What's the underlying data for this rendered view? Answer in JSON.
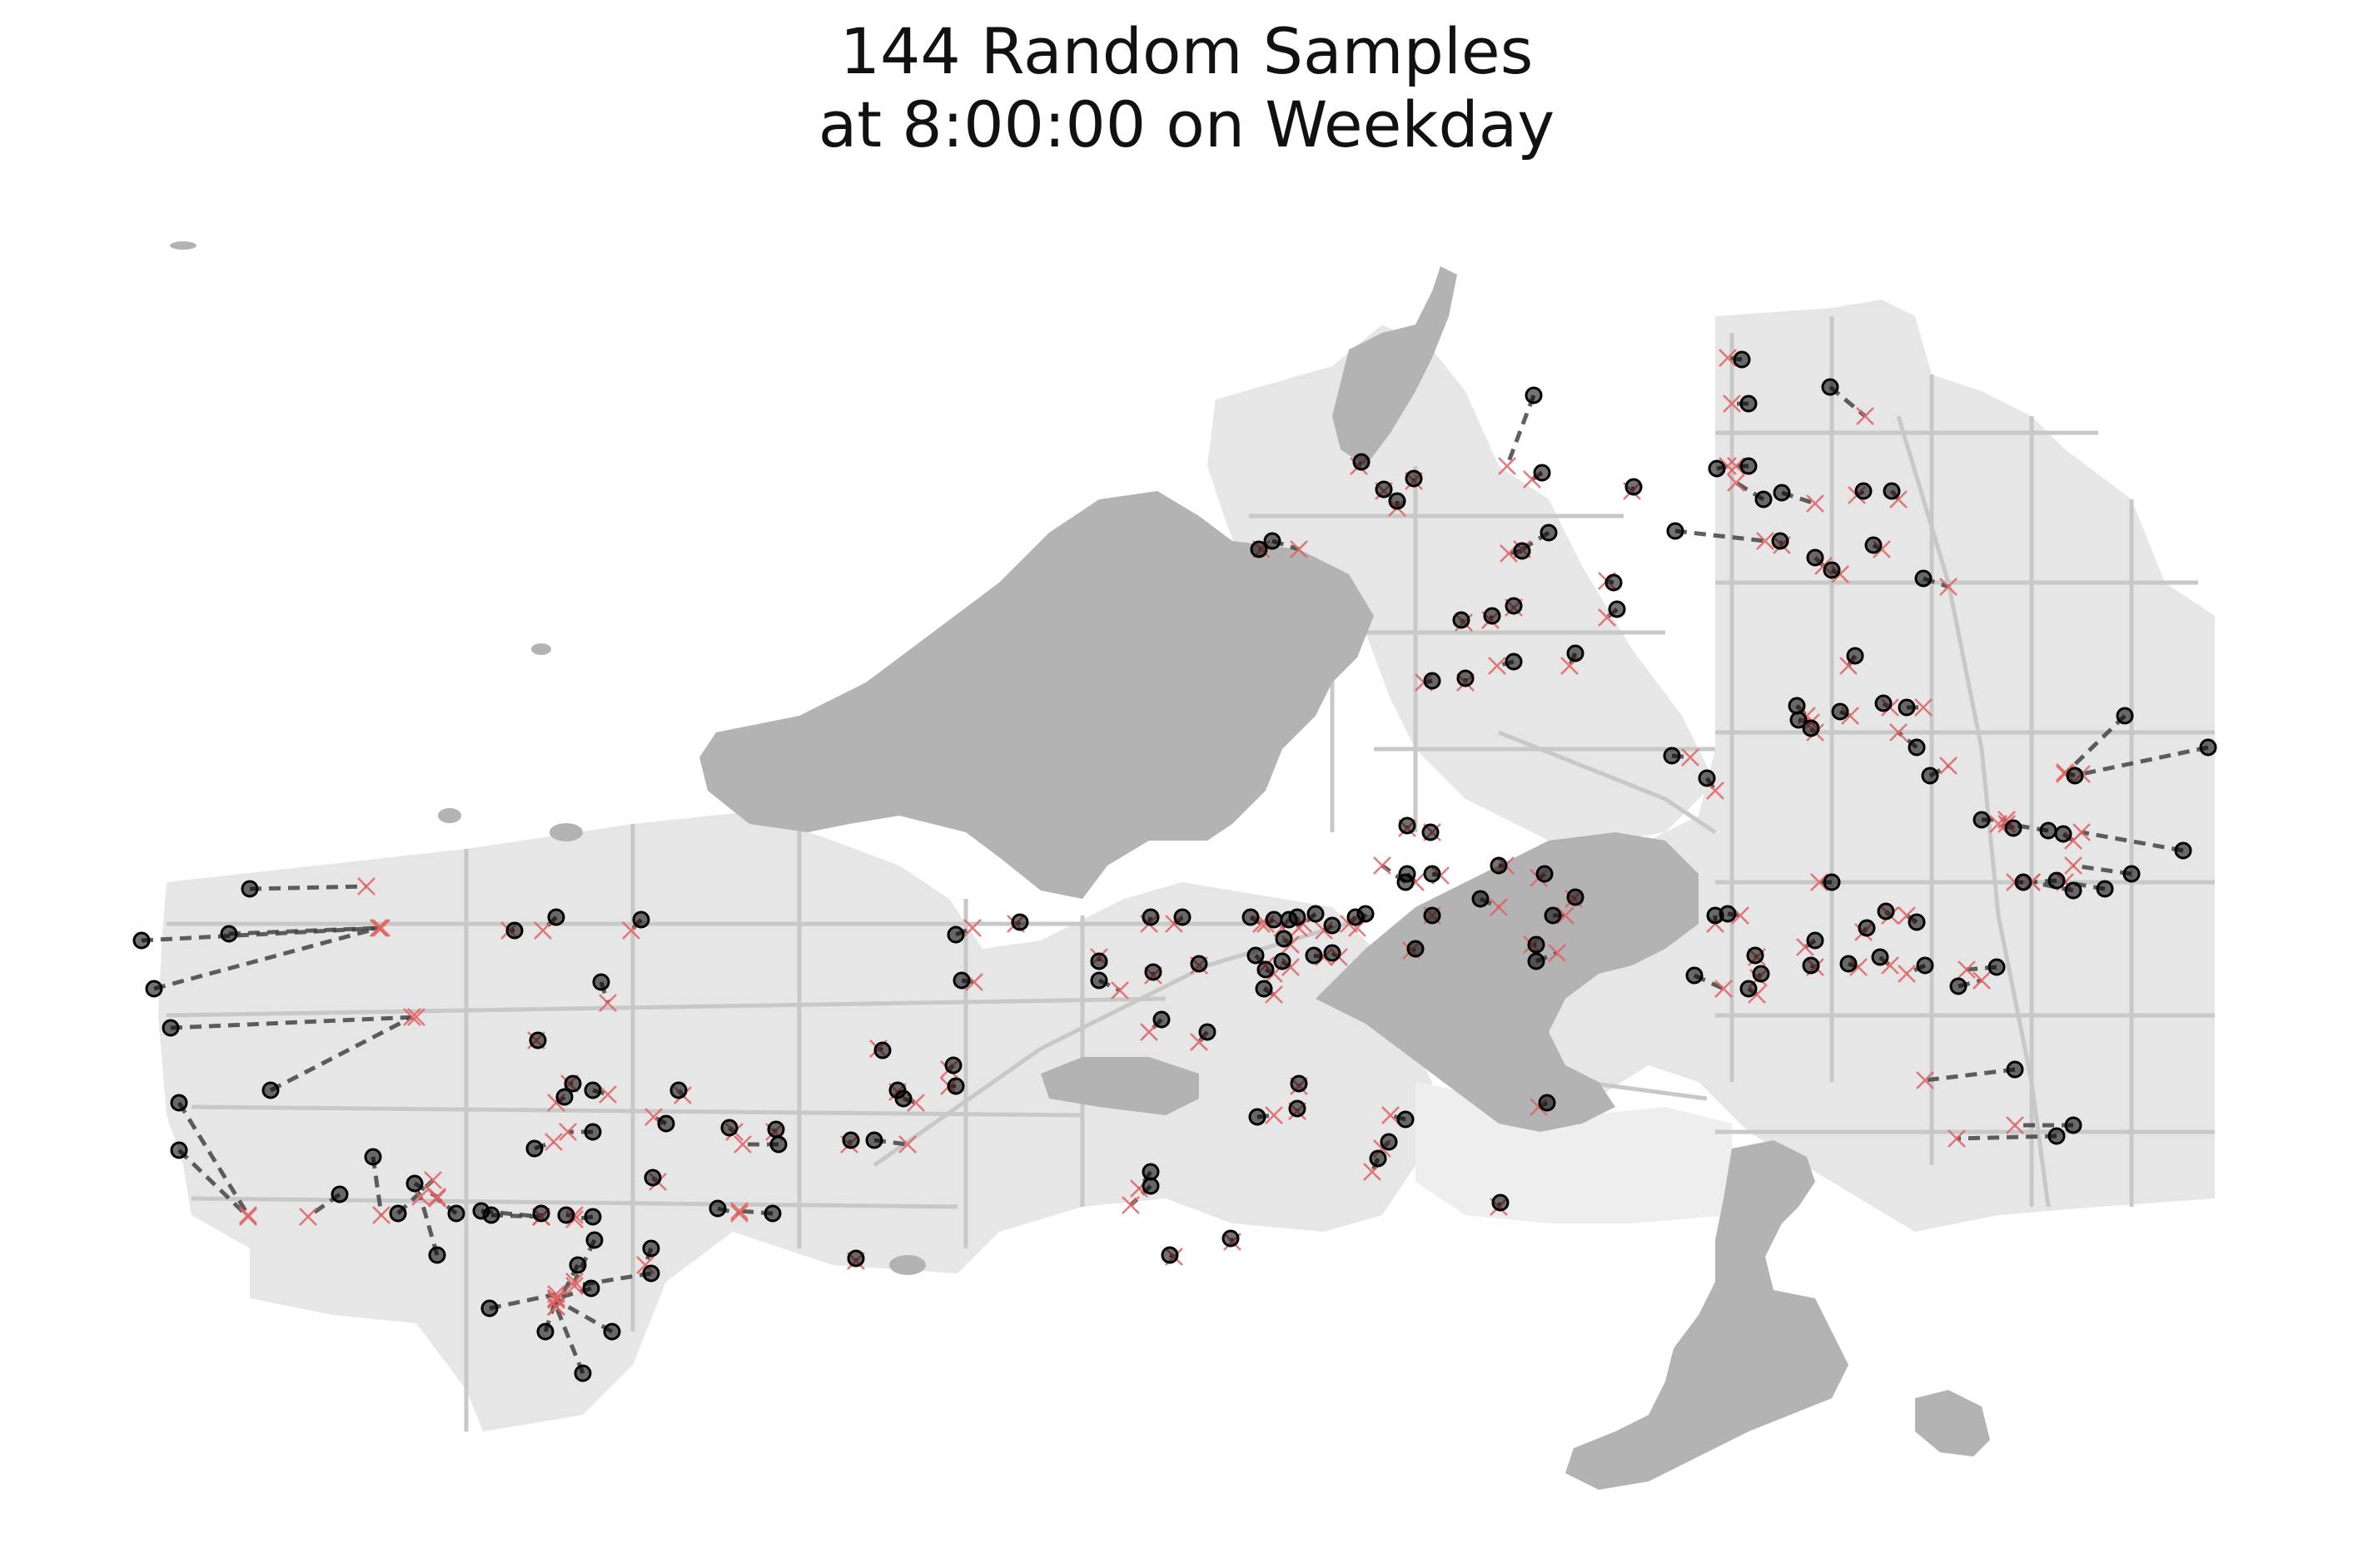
{
  "title": {
    "line1": "144 Random Samples",
    "line2": "at 8:00:00 on Weekday"
  },
  "colors": {
    "land": "#e6e6e6",
    "street": "#c8c8c8",
    "water": "#b3b3b3",
    "sample_point": "#000000",
    "snap_marker": "#e06060",
    "connector": "#444444"
  },
  "legend": null
}
